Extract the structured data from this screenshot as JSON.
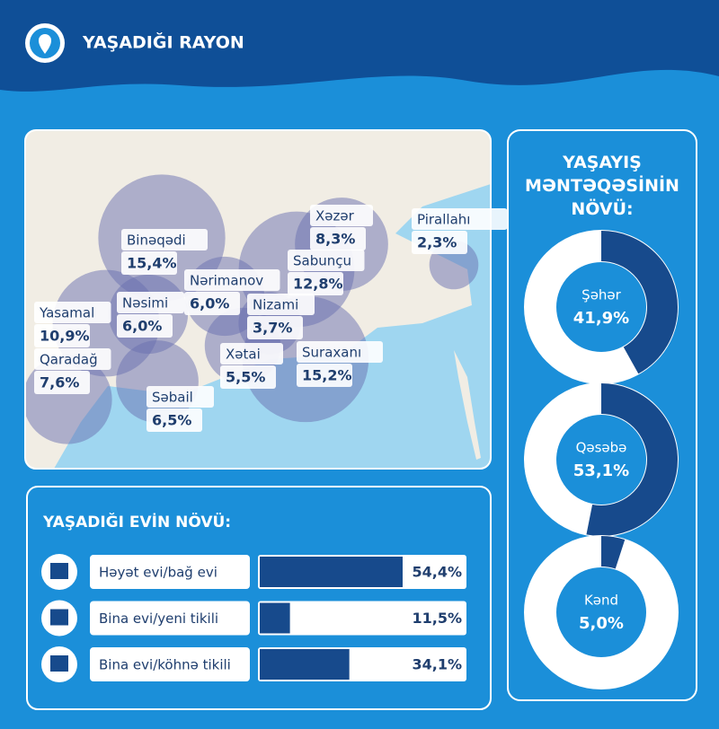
{
  "header": {
    "title": "YAŞADIĞI RAYON"
  },
  "chart_data": [
    {
      "type": "bubble",
      "categories": [
        "Binəqədi",
        "Xəzər",
        "Pirallahı",
        "Sabunçu",
        "Nərimanov",
        "Nəsimi",
        "Yasamal",
        "Nizami",
        "Qaradağ",
        "Xətai",
        "Suraxanı",
        "Səbail"
      ],
      "values": [
        15.4,
        8.3,
        2.3,
        12.8,
        6.0,
        6.0,
        10.9,
        3.7,
        7.6,
        5.5,
        15.2,
        6.5
      ],
      "value_labels": [
        "15,4%",
        "8,3%",
        "2,3%",
        "12,8%",
        "6,0%",
        "6,0%",
        "10,9%",
        "3,7%",
        "7,6%",
        "5,5%",
        "15,2%",
        "6,5%"
      ],
      "color": "#6a6fb0"
    },
    {
      "type": "hbar",
      "title": "YAŞADIĞI EVİN NÖVÜ:",
      "categories": [
        "Həyət evi/bağ evi",
        "Bina evi/yeni tikili",
        "Bina evi/köhnə tikili"
      ],
      "values": [
        54.4,
        11.5,
        34.1
      ],
      "value_labels": [
        "54,4%",
        "11,5%",
        "34,1%"
      ],
      "color": "#174a8c"
    },
    {
      "type": "donut",
      "title": "YAŞAYIŞ MƏNTƏQƏSİNİN NÖVÜ:",
      "categories": [
        "Şəhər",
        "Qəsəbə",
        "Kənd"
      ],
      "values": [
        41.9,
        53.1,
        5.0
      ],
      "value_labels": [
        "41,9%",
        "53,1%",
        "5,0%"
      ],
      "color": "#174a8c"
    }
  ]
}
